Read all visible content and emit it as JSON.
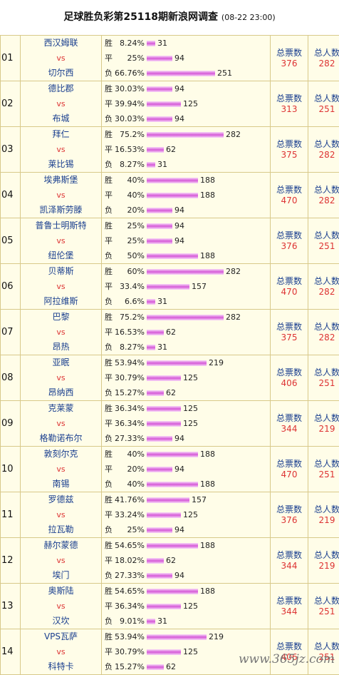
{
  "header": {
    "title": "足球胜负彩第25118期新浪网调查",
    "datetime": "(08-22 23:00)"
  },
  "labels": {
    "win": "胜",
    "draw": "平",
    "loss": "负",
    "vs": "vs",
    "total_votes": "总票数",
    "total_people": "总人数"
  },
  "matches": [
    {
      "no": "01",
      "home": "西汉姆联",
      "away": "切尔西",
      "win_pct": "8.24%",
      "win": 31,
      "draw_pct": "25%",
      "draw": 94,
      "loss_pct": "66.76%",
      "loss": 251,
      "total_votes": 376,
      "total_people": 282
    },
    {
      "no": "02",
      "home": "德比郡",
      "away": "布城",
      "win_pct": "30.03%",
      "win": 94,
      "draw_pct": "39.94%",
      "draw": 125,
      "loss_pct": "30.03%",
      "loss": 94,
      "total_votes": 313,
      "total_people": 251
    },
    {
      "no": "03",
      "home": "拜仁",
      "away": "莱比锡",
      "win_pct": "75.2%",
      "win": 282,
      "draw_pct": "16.53%",
      "draw": 62,
      "loss_pct": "8.27%",
      "loss": 31,
      "total_votes": 375,
      "total_people": 282
    },
    {
      "no": "04",
      "home": "埃弗斯堡",
      "away": "凯泽斯劳滕",
      "win_pct": "40%",
      "win": 188,
      "draw_pct": "40%",
      "draw": 188,
      "loss_pct": "20%",
      "loss": 94,
      "total_votes": 470,
      "total_people": 282
    },
    {
      "no": "05",
      "home": "普鲁士明斯特",
      "away": "纽伦堡",
      "win_pct": "25%",
      "win": 94,
      "draw_pct": "25%",
      "draw": 94,
      "loss_pct": "50%",
      "loss": 188,
      "total_votes": 376,
      "total_people": 251
    },
    {
      "no": "06",
      "home": "贝蒂斯",
      "away": "阿拉维斯",
      "win_pct": "60%",
      "win": 282,
      "draw_pct": "33.4%",
      "draw": 157,
      "loss_pct": "6.6%",
      "loss": 31,
      "total_votes": 470,
      "total_people": 282
    },
    {
      "no": "07",
      "home": "巴黎",
      "away": "昂热",
      "win_pct": "75.2%",
      "win": 282,
      "draw_pct": "16.53%",
      "draw": 62,
      "loss_pct": "8.27%",
      "loss": 31,
      "total_votes": 375,
      "total_people": 282
    },
    {
      "no": "08",
      "home": "亚眠",
      "away": "昂纳西",
      "win_pct": "53.94%",
      "win": 219,
      "draw_pct": "30.79%",
      "draw": 125,
      "loss_pct": "15.27%",
      "loss": 62,
      "total_votes": 406,
      "total_people": 251
    },
    {
      "no": "09",
      "home": "克莱蒙",
      "away": "格勒诺布尔",
      "win_pct": "36.34%",
      "win": 125,
      "draw_pct": "36.34%",
      "draw": 125,
      "loss_pct": "27.33%",
      "loss": 94,
      "total_votes": 344,
      "total_people": 219
    },
    {
      "no": "10",
      "home": "敦刻尔克",
      "away": "南锡",
      "win_pct": "40%",
      "win": 188,
      "draw_pct": "20%",
      "draw": 94,
      "loss_pct": "40%",
      "loss": 188,
      "total_votes": 470,
      "total_people": 251
    },
    {
      "no": "11",
      "home": "罗德兹",
      "away": "拉瓦勒",
      "win_pct": "41.76%",
      "win": 157,
      "draw_pct": "33.24%",
      "draw": 125,
      "loss_pct": "25%",
      "loss": 94,
      "total_votes": 376,
      "total_people": 219
    },
    {
      "no": "12",
      "home": "赫尔蒙德",
      "away": "埃门",
      "win_pct": "54.65%",
      "win": 188,
      "draw_pct": "18.02%",
      "draw": 62,
      "loss_pct": "27.33%",
      "loss": 94,
      "total_votes": 344,
      "total_people": 219
    },
    {
      "no": "13",
      "home": "奥斯陆",
      "away": "汉坎",
      "win_pct": "54.65%",
      "win": 188,
      "draw_pct": "36.34%",
      "draw": 125,
      "loss_pct": "9.01%",
      "loss": 31,
      "total_votes": 344,
      "total_people": 251
    },
    {
      "no": "14",
      "home": "VPS瓦萨",
      "away": "科特卡",
      "win_pct": "53.94%",
      "win": 219,
      "draw_pct": "30.79%",
      "draw": 125,
      "loss_pct": "15.27%",
      "loss": 62,
      "total_votes": 406,
      "total_people": 251
    }
  ],
  "colors": {
    "border": "#d8c98a",
    "cell_bg": "#fffde8",
    "team_text": "#1a3f8f",
    "accent_red": "#dd3333",
    "bar": "#d65ad8"
  },
  "watermark": "www.365jz.com"
}
